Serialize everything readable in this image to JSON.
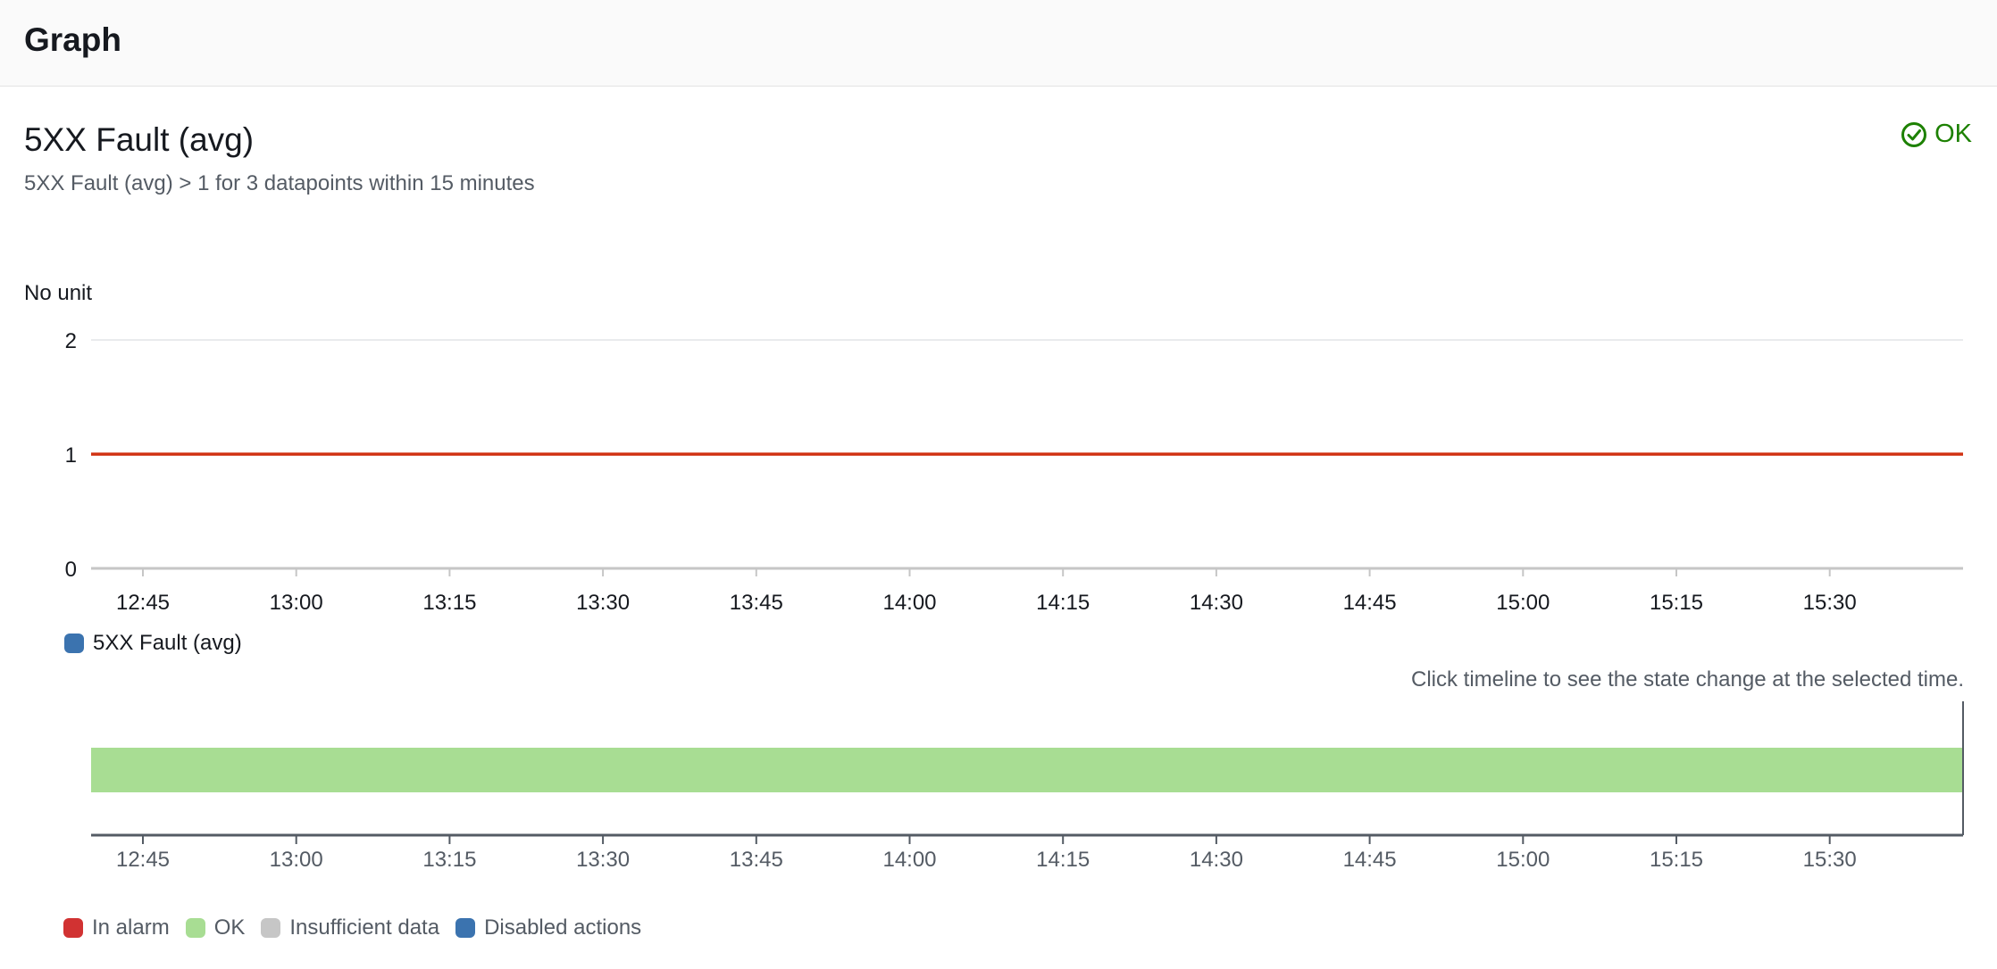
{
  "header": {
    "title": "Graph"
  },
  "alarm": {
    "title": "5XX Fault (avg)",
    "description": "5XX Fault (avg) > 1 for 3 datapoints within 15 minutes",
    "status_label": "OK",
    "status_icon": "check-circle-icon",
    "status_color": "#1d8102"
  },
  "chart_data": {
    "type": "line",
    "ylabel": "No unit",
    "ylim": [
      0,
      2
    ],
    "yticks": [
      "0",
      "1",
      "2"
    ],
    "x_tick_labels": [
      "12:45",
      "13:00",
      "13:15",
      "13:30",
      "13:45",
      "14:00",
      "14:15",
      "14:30",
      "14:45",
      "15:00",
      "15:15",
      "15:30"
    ],
    "threshold": {
      "value": 1,
      "color": "#d13212"
    },
    "series": [
      {
        "name": "5XX Fault (avg)",
        "color": "#3b73af",
        "values": []
      }
    ],
    "grid": true,
    "legend_position": "bottom-left"
  },
  "timeline": {
    "hint": "Click timeline to see the state change at the selected time.",
    "state": "OK",
    "state_color": "#a8dd93",
    "x_tick_labels": [
      "12:45",
      "13:00",
      "13:15",
      "13:30",
      "13:45",
      "14:00",
      "14:15",
      "14:30",
      "14:45",
      "15:00",
      "15:15",
      "15:30"
    ],
    "legend": [
      {
        "label": "In alarm",
        "color": "#d13232"
      },
      {
        "label": "OK",
        "color": "#a8dd93"
      },
      {
        "label": "Insufficient data",
        "color": "#c6c6c6"
      },
      {
        "label": "Disabled actions",
        "color": "#3b73af"
      }
    ]
  }
}
